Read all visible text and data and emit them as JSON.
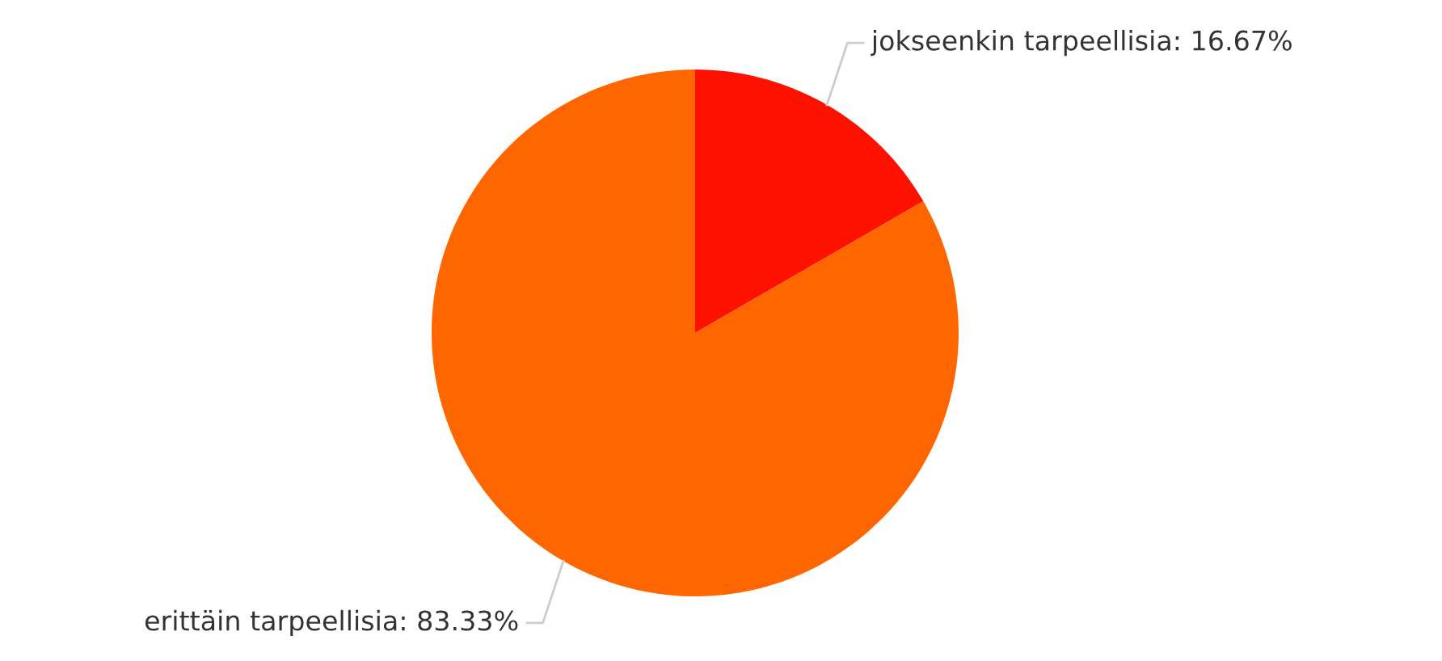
{
  "chart_data": {
    "type": "pie",
    "categories": [
      "jokseenkin tarpeellisia",
      "erittäin tarpeellisia"
    ],
    "values": [
      16.67,
      83.33
    ],
    "colors": [
      "#ff1100",
      "#ff6600"
    ],
    "value_labels": [
      "16.67%",
      "83.33%"
    ],
    "legend": false
  }
}
